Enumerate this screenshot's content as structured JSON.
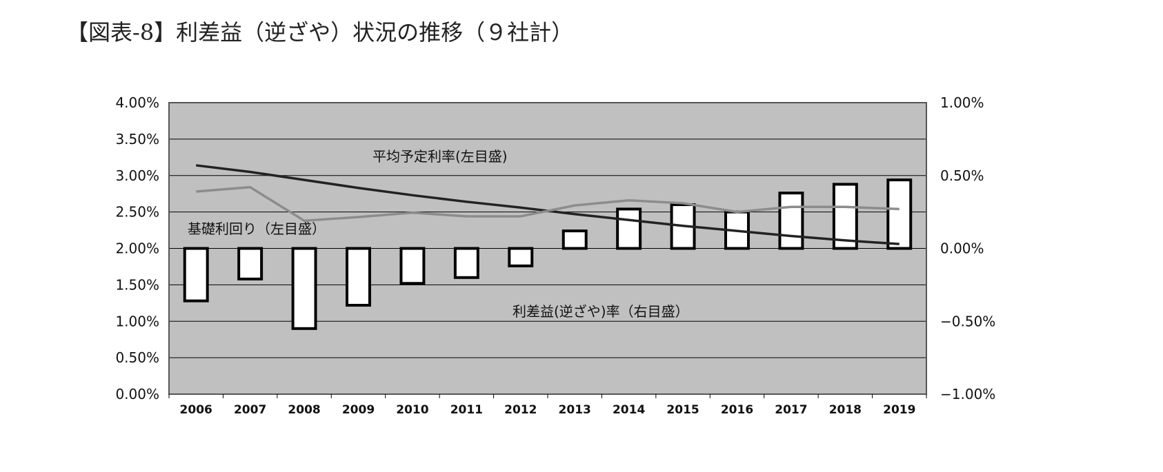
{
  "title": "【図表-8】利差益（逆ざや）状況の推移（９社計）",
  "chart_data": {
    "type": "bar",
    "categories": [
      "2006",
      "2007",
      "2008",
      "2009",
      "2010",
      "2011",
      "2012",
      "2013",
      "2014",
      "2015",
      "2016",
      "2017",
      "2018",
      "2019"
    ],
    "left_axis": {
      "ylim": [
        0,
        4.0
      ],
      "ticks": [
        "0.00%",
        "0.50%",
        "1.00%",
        "1.50%",
        "2.00%",
        "2.50%",
        "3.00%",
        "3.50%",
        "4.00%"
      ]
    },
    "right_axis": {
      "ylim": [
        -1.0,
        1.0
      ],
      "ticks": [
        "−1.00%",
        "−0.50%",
        "0.00%",
        "0.50%",
        "1.00%"
      ]
    },
    "series": [
      {
        "name": "利差益(逆ざや)率（右目盛）",
        "type": "bar",
        "axis": "right",
        "values": [
          -0.36,
          -0.21,
          -0.55,
          -0.39,
          -0.24,
          -0.2,
          -0.12,
          0.12,
          0.27,
          0.3,
          0.25,
          0.38,
          0.44,
          0.47
        ]
      },
      {
        "name": "平均予定利率(左目盛)",
        "type": "line",
        "axis": "left",
        "color": "#222222",
        "values": [
          3.14,
          3.05,
          2.94,
          2.83,
          2.73,
          2.64,
          2.56,
          2.47,
          2.39,
          2.31,
          2.24,
          2.17,
          2.11,
          2.06
        ]
      },
      {
        "name": "基礎利回り（左目盛）",
        "type": "line",
        "axis": "left",
        "color": "#8c8c8c",
        "values": [
          2.78,
          2.84,
          2.38,
          2.43,
          2.49,
          2.44,
          2.44,
          2.59,
          2.66,
          2.62,
          2.5,
          2.57,
          2.57,
          2.54
        ]
      }
    ],
    "annotations": {
      "planned_rate": "平均予定利率(左目盛)",
      "base_yield": "基礎利回り（左目盛）",
      "spread": "利差益(逆ざや)率（右目盛）"
    },
    "colors": {
      "plot_bg": "#c0c0c0",
      "bar_fill": "#ffffff",
      "bar_stroke": "#000000",
      "grid": "#000000"
    },
    "grid": true
  }
}
